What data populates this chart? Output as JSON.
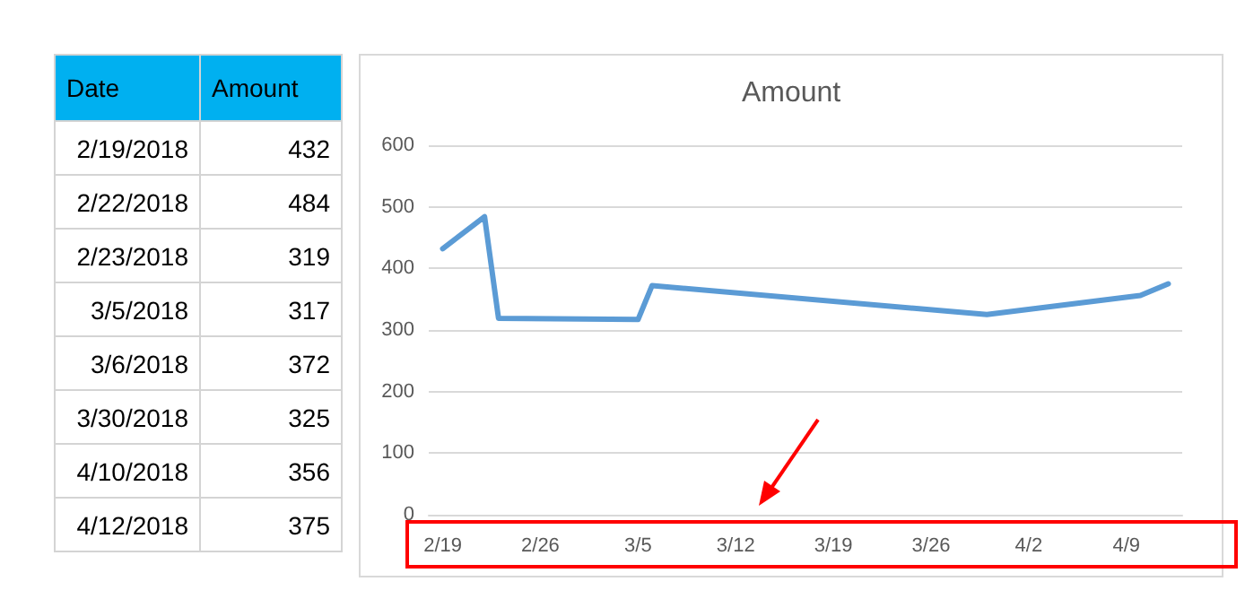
{
  "chart_data": [
    {
      "type": "other",
      "annotations": [
        "Date",
        "Amount",
        "2/19/2018",
        "432",
        "2/22/2018",
        "484",
        "2/23/2018",
        "319",
        "3/5/2018",
        "317",
        "3/6/2018",
        "372",
        "3/30/2018",
        "325",
        "4/10/2018",
        "356",
        "4/12/2018",
        "375"
      ]
    },
    {
      "type": "line",
      "title": "Amount",
      "x": [
        "2018-02-19",
        "2018-02-22",
        "2018-02-23",
        "2018-03-05",
        "2018-03-06",
        "2018-03-30",
        "2018-04-10",
        "2018-04-12"
      ],
      "series": [
        {
          "color": "#5b9bd5",
          "values": [
            432,
            484,
            319,
            317,
            372,
            325,
            356,
            375
          ]
        }
      ],
      "xlim": [
        "2018-02-18",
        "2018-04-13"
      ],
      "xticks": [
        {
          "value": "2018-02-19",
          "label": "2/19"
        },
        {
          "value": "2018-02-26",
          "label": "2/26"
        },
        {
          "value": "2018-03-05",
          "label": "3/5"
        },
        {
          "value": "2018-03-12",
          "label": "3/12"
        },
        {
          "value": "2018-03-19",
          "label": "3/19"
        },
        {
          "value": "2018-03-26",
          "label": "3/26"
        },
        {
          "value": "2018-04-02",
          "label": "4/2"
        },
        {
          "value": "2018-04-09",
          "label": "4/9"
        }
      ],
      "ylim": [
        0,
        600
      ],
      "yticks": [
        0,
        100,
        200,
        300,
        400,
        500,
        600
      ],
      "grid": "y",
      "marker": "none",
      "line_style": "solid"
    }
  ]
}
